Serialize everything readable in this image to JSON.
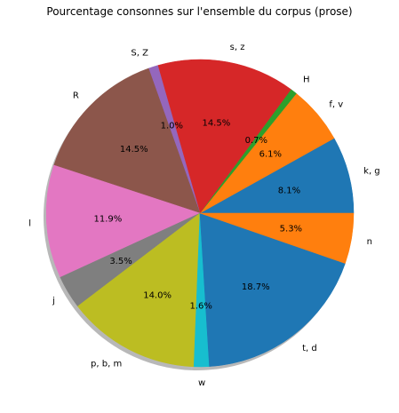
{
  "chart_data": {
    "type": "pie",
    "title": "Pourcentage consonnes sur l'ensemble du corpus (prose)",
    "shadow": true,
    "start_angle_deg": 0,
    "direction": "counterclockwise",
    "slices": [
      {
        "label": "k, g",
        "value": 8.1,
        "pct_label": "8.1%",
        "color": "#1f77b4"
      },
      {
        "label": "f, v",
        "value": 6.1,
        "pct_label": "6.1%",
        "color": "#ff7f0e"
      },
      {
        "label": "H",
        "value": 0.7,
        "pct_label": "0.7%",
        "color": "#2ca02c"
      },
      {
        "label": "s, z",
        "value": 14.5,
        "pct_label": "14.5%",
        "color": "#d62728"
      },
      {
        "label": "S, Z",
        "value": 1.0,
        "pct_label": "1.0%",
        "color": "#9467bd"
      },
      {
        "label": "R",
        "value": 14.5,
        "pct_label": "14.5%",
        "color": "#8c564b"
      },
      {
        "label": "l",
        "value": 11.9,
        "pct_label": "11.9%",
        "color": "#e377c2"
      },
      {
        "label": "j",
        "value": 3.5,
        "pct_label": "3.5%",
        "color": "#7f7f7f"
      },
      {
        "label": "p, b, m",
        "value": 14.0,
        "pct_label": "14.0%",
        "color": "#bcbd22"
      },
      {
        "label": "w",
        "value": 1.6,
        "pct_label": "1.6%",
        "color": "#17becf"
      },
      {
        "label": "t, d",
        "value": 18.7,
        "pct_label": "18.7%",
        "color": "#1f77b4"
      },
      {
        "label": "n",
        "value": 5.3,
        "pct_label": "5.3%",
        "color": "#ff7f0e"
      }
    ]
  }
}
